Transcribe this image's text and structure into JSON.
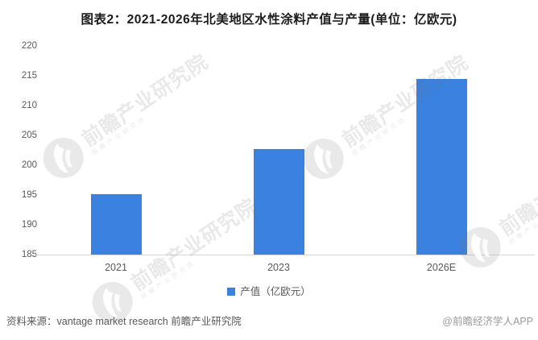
{
  "title": "图表2：2021-2026年北美地区水性涂料产值与产量(单位：亿欧元)",
  "chart_data": {
    "type": "bar",
    "title": "图表2：2021-2026年北美地区水性涂料产值与产量(单位：亿欧元)",
    "categories": [
      "2021",
      "2023",
      "2026E"
    ],
    "series": [
      {
        "name": "产值（亿欧元）",
        "values": [
          195.2,
          202.7,
          214.4
        ],
        "color": "#3B81DF"
      }
    ],
    "xlabel": "",
    "ylabel": "",
    "ylim": [
      185,
      220
    ],
    "yticks": [
      185,
      190,
      195,
      200,
      205,
      210,
      215,
      220
    ],
    "grid": false,
    "legend_position": "bottom"
  },
  "legend": {
    "label": "产值（亿欧元）",
    "swatch_color": "#3B81DF"
  },
  "footer": {
    "source": "资料来源：vantage market research 前瞻产业研究院",
    "credit": "@前瞻经济学人APP"
  },
  "watermark": {
    "text": "前瞻产业研究院",
    "logo": "qianzhan-logo-icon"
  },
  "colors": {
    "bar": "#3B81DF",
    "axis_line": "#D9D9D9",
    "tick_label": "#595959",
    "title": "#1C1C1C",
    "footer_source": "#595959",
    "footer_credit": "#9A9A9A",
    "watermark": "rgba(120,120,120,0.16)"
  }
}
